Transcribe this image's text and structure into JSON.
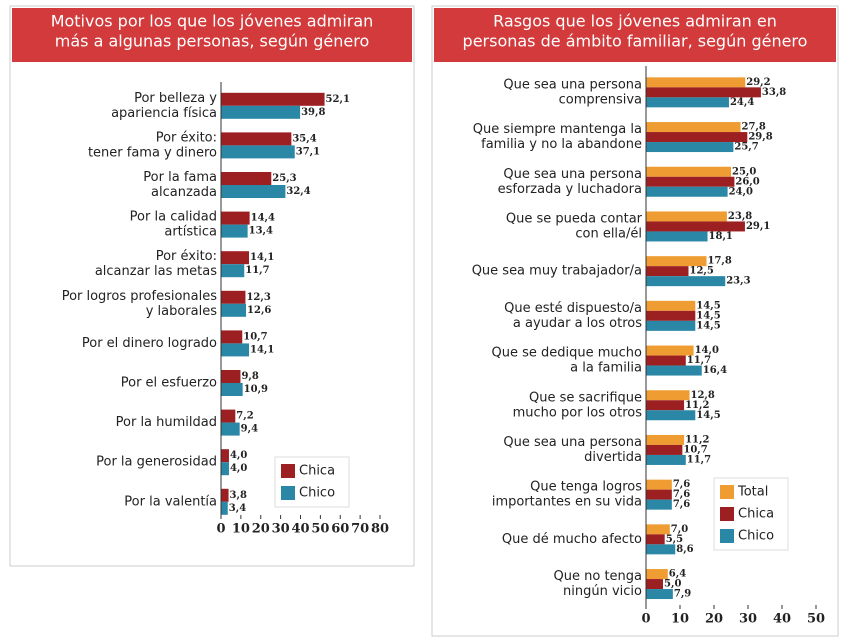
{
  "chart_data": [
    {
      "type": "bar",
      "orientation": "horizontal",
      "title": [
        "Motivos por los que los jóvenes admiran",
        "más a algunas personas, según género"
      ],
      "categories": [
        [
          "Por belleza y",
          "apariencia física"
        ],
        [
          "Por éxito:",
          "tener fama y dinero"
        ],
        [
          "Por la fama",
          "alcanzada"
        ],
        [
          "Por la calidad",
          "artística"
        ],
        [
          "Por éxito:",
          "alcanzar las metas"
        ],
        [
          "Por logros profesionales",
          "y laborales"
        ],
        [
          "Por el dinero logrado"
        ],
        [
          "Por el esfuerzo"
        ],
        [
          "Por la humildad"
        ],
        [
          "Por la generosidad"
        ],
        [
          "Por la valentía"
        ]
      ],
      "series": [
        {
          "name": "Chica",
          "color": "#9c1f22",
          "values": [
            52.1,
            35.4,
            25.3,
            14.4,
            14.1,
            12.3,
            10.7,
            9.8,
            7.2,
            4.0,
            3.8
          ],
          "value_labels": [
            "52,1",
            "35,4",
            "25,3",
            "14,4",
            "14,1",
            "12,3",
            "10,7",
            "9,8",
            "7,2",
            "4,0",
            "3,8"
          ]
        },
        {
          "name": "Chico",
          "color": "#2b87a6",
          "values": [
            39.8,
            37.1,
            32.4,
            13.4,
            11.7,
            12.6,
            14.1,
            10.9,
            9.4,
            4.0,
            3.4
          ],
          "value_labels": [
            "39,8",
            "37,1",
            "32,4",
            "13,4",
            "11,7",
            "12,6",
            "14,1",
            "10,9",
            "9,4",
            "4,0",
            "3,4"
          ]
        }
      ],
      "xlim": [
        0,
        80
      ],
      "xticks": [
        0,
        10,
        20,
        30,
        40,
        50,
        60,
        70,
        80
      ],
      "legend": "lower right"
    },
    {
      "type": "bar",
      "orientation": "horizontal",
      "title": [
        "Rasgos que los jóvenes admiran en",
        "personas de ámbito familiar, según género"
      ],
      "categories": [
        [
          "Que sea una persona",
          "comprensiva"
        ],
        [
          "Que siempre mantenga la",
          "familia y no la abandone"
        ],
        [
          "Que sea una persona",
          "esforzada y luchadora"
        ],
        [
          "Que se pueda contar",
          "con ella/él"
        ],
        [
          "Que sea muy trabajador/a"
        ],
        [
          "Que esté dispuesto/a",
          "a ayudar a los otros"
        ],
        [
          "Que se dedique mucho",
          "a la familia"
        ],
        [
          "Que se sacrifique",
          "mucho por los otros"
        ],
        [
          "Que sea una persona",
          "divertida"
        ],
        [
          "Que tenga logros",
          "importantes en su vida"
        ],
        [
          "Que dé mucho afecto"
        ],
        [
          "Que no tenga",
          "ningún vicio"
        ]
      ],
      "series": [
        {
          "name": "Total",
          "color": "#ef9d32",
          "values": [
            29.2,
            27.8,
            25.0,
            23.8,
            17.8,
            14.5,
            14.0,
            12.8,
            11.2,
            7.6,
            7.0,
            6.4
          ],
          "value_labels": [
            "29,2",
            "27,8",
            "25,0",
            "23,8",
            "17,8",
            "14,5",
            "14,0",
            "12,8",
            "11,2",
            "7,6",
            "7,0",
            "6,4"
          ]
        },
        {
          "name": "Chica",
          "color": "#9c1f22",
          "values": [
            33.8,
            29.8,
            26.0,
            29.1,
            12.5,
            14.5,
            11.7,
            11.2,
            10.7,
            7.6,
            5.5,
            5.0
          ],
          "value_labels": [
            "33,8",
            "29,8",
            "26,0",
            "29,1",
            "12,5",
            "14,5",
            "11,7",
            "11,2",
            "10,7",
            "7,6",
            "5,5",
            "5,0"
          ]
        },
        {
          "name": "Chico",
          "color": "#2b87a6",
          "values": [
            24.4,
            25.7,
            24.0,
            18.1,
            23.3,
            14.5,
            16.4,
            14.5,
            11.7,
            7.6,
            8.6,
            7.9
          ],
          "value_labels": [
            "24,4",
            "25,7",
            "24,0",
            "18,1",
            "23,3",
            "14,5",
            "16,4",
            "14,5",
            "11,7",
            "7,6",
            "8,6",
            "7,9"
          ]
        }
      ],
      "xlim": [
        0,
        50
      ],
      "xticks": [
        0,
        10,
        20,
        30,
        40,
        50
      ],
      "legend": "lower right"
    }
  ]
}
